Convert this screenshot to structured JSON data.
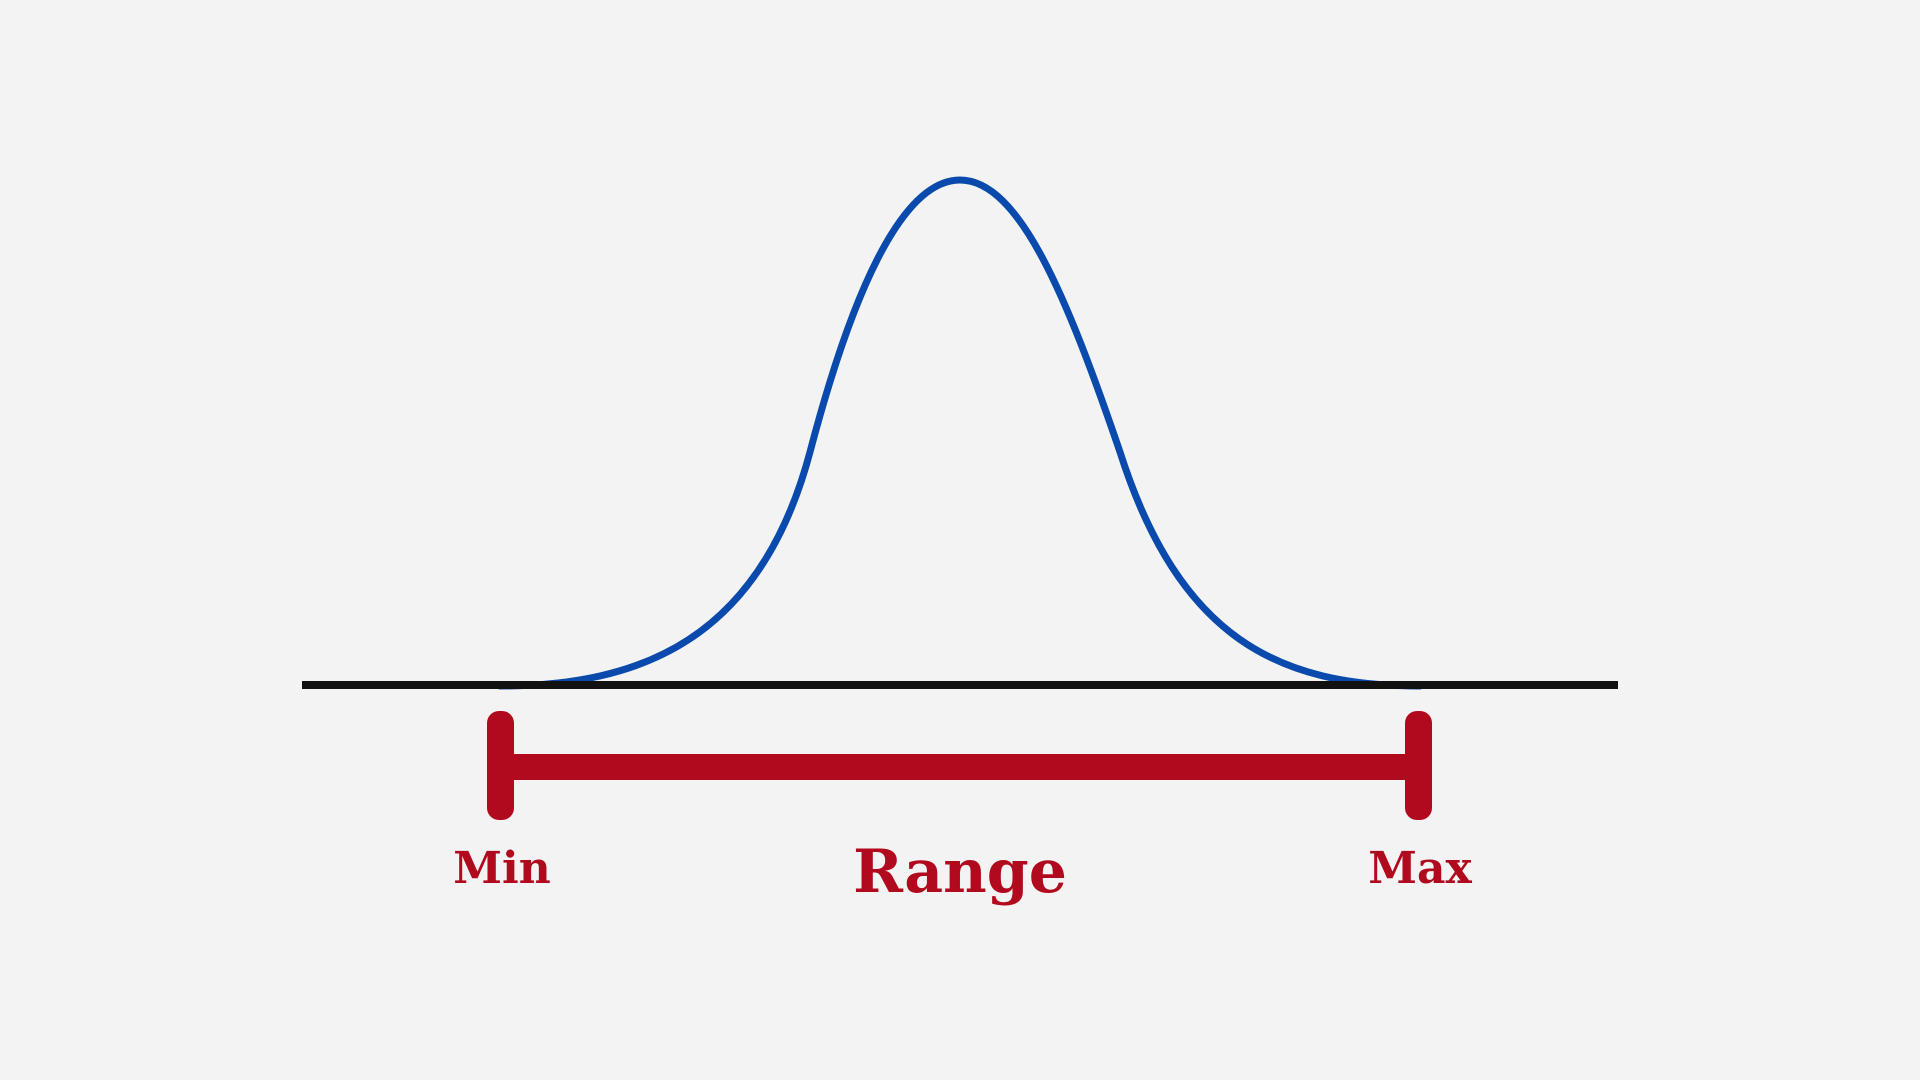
{
  "diagram": {
    "labels": {
      "min": "Min",
      "range": "Range",
      "max": "Max"
    },
    "colors": {
      "background": "#f3f3f3",
      "curve": "#0a4aad",
      "axis": "#111111",
      "range": "#b10a1f"
    }
  }
}
